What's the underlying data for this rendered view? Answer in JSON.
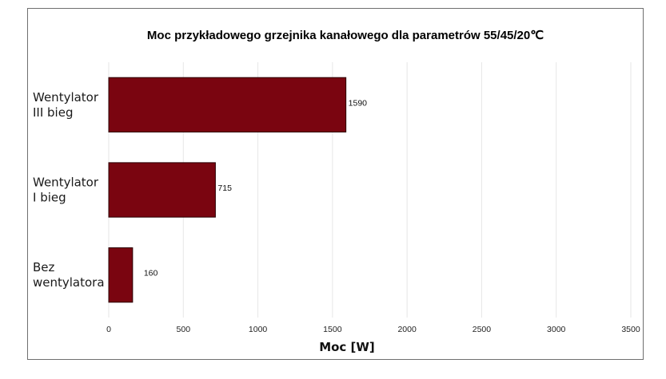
{
  "chart_data": {
    "type": "bar",
    "orientation": "horizontal",
    "title": "Moc przykładowego grzejnika kanałowego dla parametrów 55/45/20℃",
    "xlabel": "Moc [W]",
    "ylabel": "",
    "categories": [
      [
        "Wentylator",
        "III bieg"
      ],
      [
        "Wentylator",
        "I bieg"
      ],
      [
        "Bez",
        "wentylatora"
      ]
    ],
    "values": [
      1590,
      715,
      160
    ],
    "data_labels": [
      "1590",
      "715",
      "160"
    ],
    "xlim": [
      0,
      3500
    ],
    "xticks": [
      "0",
      "500",
      "1000",
      "1500",
      "2000",
      "2500",
      "3000",
      "3500"
    ],
    "xtick_values": [
      0,
      500,
      1000,
      1500,
      2000,
      2500,
      3000,
      3500
    ],
    "grid": "vertical",
    "colors": {
      "bar": "#7a0510",
      "bar_edge": "#2a0004",
      "grid": "#e6e6e6"
    }
  }
}
